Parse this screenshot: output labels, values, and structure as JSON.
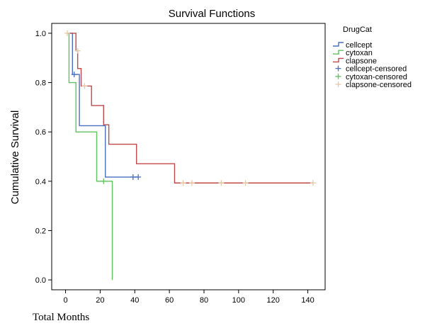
{
  "chart_data": {
    "type": "line",
    "title": "Survival Functions",
    "xlabel": "Total Months",
    "ylabel": "Cumulative Survival",
    "xlim": [
      -8,
      150
    ],
    "ylim": [
      -0.04,
      1.04
    ],
    "xticks": [
      "0",
      "20",
      "40",
      "60",
      "80",
      "100",
      "120",
      "140"
    ],
    "yticks": [
      "0.0",
      "0.2",
      "0.4",
      "0.6",
      "0.8",
      "1.0"
    ],
    "grid": false,
    "legend_title": "DrugCat",
    "legend_position": "right",
    "legend": [
      "cellcept",
      "cytoxan",
      "clapsone",
      "cellcept-censored",
      "cytoxan-censored",
      "clapsone-censored"
    ],
    "series": [
      {
        "name": "cellcept",
        "color": "#4a6fbf",
        "steps": [
          [
            2,
            1.0
          ],
          [
            4,
            0.833
          ],
          [
            8,
            0.625
          ],
          [
            23,
            0.417
          ],
          [
            42,
            0.417
          ]
        ],
        "censored": [
          [
            5,
            0.833
          ],
          [
            39,
            0.417
          ],
          [
            42,
            0.417
          ]
        ]
      },
      {
        "name": "cytoxan",
        "color": "#5cc45c",
        "steps": [
          [
            1,
            1.0
          ],
          [
            2,
            0.8
          ],
          [
            6,
            0.6
          ],
          [
            18,
            0.4
          ],
          [
            27,
            0.0
          ]
        ],
        "censored": [
          [
            22,
            0.4
          ]
        ]
      },
      {
        "name": "clapsone",
        "color": "#c0484a",
        "steps": [
          [
            2,
            1.0
          ],
          [
            6,
            0.929
          ],
          [
            7,
            0.857
          ],
          [
            9,
            0.786
          ],
          [
            15,
            0.707
          ],
          [
            22,
            0.629
          ],
          [
            25,
            0.55
          ],
          [
            41,
            0.471
          ],
          [
            63,
            0.393
          ],
          [
            143,
            0.393
          ]
        ],
        "censored": [
          [
            1,
            1.0
          ],
          [
            7,
            0.929
          ],
          [
            11,
            0.786
          ],
          [
            68,
            0.393
          ],
          [
            73,
            0.393
          ],
          [
            90,
            0.393
          ],
          [
            104,
            0.393
          ],
          [
            143,
            0.393
          ]
        ]
      }
    ]
  }
}
